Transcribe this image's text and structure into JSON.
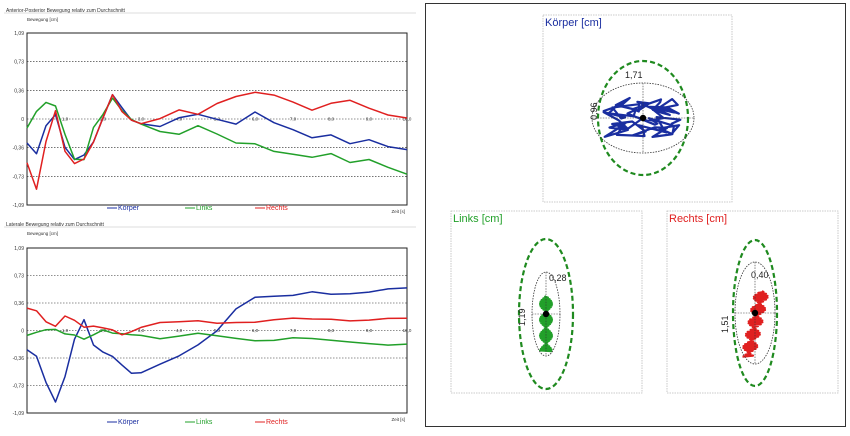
{
  "chart_data": [
    {
      "type": "line",
      "title": "Anterior-Posterior Bewegung relativ zum Durchschnitt",
      "ylabel": "Bewegung [cm]",
      "xlabel": "Zeit [s]",
      "xlim": [
        0,
        10
      ],
      "ylim": [
        -1.09,
        1.09
      ],
      "yticks": [
        "1,09",
        "0,73",
        "0,36",
        "0",
        "-0,36",
        "-0,73",
        "-1,09"
      ],
      "xticks": [
        "1,0",
        "2,0",
        "3,0",
        "4,0",
        "5,0",
        "6,0",
        "7,0",
        "8,0",
        "9,0",
        "10,0"
      ],
      "legend": [
        "Körper",
        "Links",
        "Rechts"
      ],
      "x": [
        0,
        0.25,
        0.5,
        0.75,
        1.0,
        1.25,
        1.5,
        1.75,
        2.0,
        2.25,
        2.5,
        2.75,
        3.0,
        3.5,
        4.0,
        4.5,
        5.0,
        5.5,
        6.0,
        6.5,
        7.0,
        7.5,
        8.0,
        8.5,
        9.0,
        9.5,
        10.0
      ],
      "series": [
        {
          "name": "Körper",
          "color": "#1a2ea0",
          "values": [
            -0.3,
            -0.45,
            -0.1,
            0.05,
            -0.35,
            -0.5,
            -0.45,
            -0.3,
            0.0,
            0.3,
            0.15,
            0.0,
            -0.05,
            -0.1,
            0.0,
            0.05,
            0.0,
            -0.05,
            0.1,
            -0.05,
            -0.15,
            -0.25,
            -0.2,
            -0.3,
            -0.25,
            -0.35,
            -0.4
          ]
        },
        {
          "name": "Links",
          "color": "#22a02a",
          "values": [
            -0.1,
            0.1,
            0.2,
            0.15,
            -0.2,
            -0.5,
            -0.5,
            -0.1,
            0.05,
            0.25,
            0.1,
            0.0,
            -0.05,
            -0.15,
            -0.2,
            -0.1,
            -0.2,
            -0.3,
            -0.3,
            -0.4,
            -0.45,
            -0.5,
            -0.45,
            -0.55,
            -0.5,
            -0.6,
            -0.7
          ]
        },
        {
          "name": "Rechts",
          "color": "#e02020",
          "values": [
            -0.55,
            -0.9,
            -0.3,
            0.1,
            -0.4,
            -0.55,
            -0.5,
            -0.3,
            0.0,
            0.3,
            0.1,
            0.0,
            -0.05,
            0.0,
            0.1,
            0.05,
            0.2,
            0.3,
            0.35,
            0.3,
            0.2,
            0.1,
            0.2,
            0.25,
            0.15,
            0.05,
            0.0
          ]
        }
      ]
    },
    {
      "type": "line",
      "title": "Laterale Bewegung relativ zum Durchschnitt",
      "ylabel": "Bewegung [cm]",
      "xlabel": "Zeit [s]",
      "xlim": [
        0,
        10
      ],
      "ylim": [
        -1.09,
        1.09
      ],
      "yticks": [
        "1,09",
        "0,73",
        "0,36",
        "0",
        "-0,36",
        "-0,73",
        "-1,09"
      ],
      "xticks": [
        "1,0",
        "2,0",
        "3,0",
        "4,0",
        "5,0",
        "6,0",
        "7,0",
        "8,0",
        "9,0",
        "10,0"
      ],
      "legend": [
        "Körper",
        "Links",
        "Rechts"
      ],
      "x": [
        0,
        0.25,
        0.5,
        0.75,
        1.0,
        1.25,
        1.5,
        1.75,
        2.0,
        2.25,
        2.5,
        2.75,
        3.0,
        3.5,
        4.0,
        4.5,
        5.0,
        5.5,
        6.0,
        6.5,
        7.0,
        7.5,
        8.0,
        8.5,
        9.0,
        9.5,
        10.0
      ],
      "series": [
        {
          "name": "Körper",
          "color": "#1a2ea0",
          "values": [
            -0.25,
            -0.35,
            -0.7,
            -0.95,
            -0.6,
            -0.1,
            0.15,
            -0.2,
            -0.3,
            -0.35,
            -0.45,
            -0.55,
            -0.55,
            -0.45,
            -0.35,
            -0.2,
            0.0,
            0.3,
            0.45,
            0.45,
            0.45,
            0.5,
            0.48,
            0.5,
            0.52,
            0.55,
            0.55
          ]
        },
        {
          "name": "Links",
          "color": "#22a02a",
          "values": [
            -0.05,
            -0.02,
            0.0,
            0.0,
            -0.05,
            -0.05,
            -0.1,
            -0.05,
            0.0,
            -0.05,
            -0.05,
            -0.05,
            -0.05,
            -0.1,
            -0.08,
            -0.05,
            -0.08,
            -0.1,
            -0.12,
            -0.12,
            -0.1,
            -0.12,
            -0.14,
            -0.15,
            -0.16,
            -0.18,
            -0.18
          ]
        },
        {
          "name": "Rechts",
          "color": "#e02020",
          "values": [
            0.3,
            0.25,
            0.1,
            0.05,
            0.2,
            0.15,
            0.05,
            0.05,
            0.02,
            0.0,
            -0.05,
            0.0,
            0.05,
            0.1,
            0.1,
            0.12,
            0.1,
            0.12,
            0.12,
            0.14,
            0.15,
            0.14,
            0.15,
            0.14,
            0.15,
            0.16,
            0.15
          ]
        }
      ]
    }
  ],
  "ellipse_plots": [
    {
      "title": "Körper [cm]",
      "color": "#1a2ea0",
      "label_w": "1,71",
      "label_h": "0,96",
      "fill": "#1a2ea0"
    },
    {
      "title": "Links [cm]",
      "color": "#22a02a",
      "label_w": "0,28",
      "label_h": "1,19",
      "fill": "#22a02a"
    },
    {
      "title": "Rechts [cm]",
      "color": "#e02020",
      "label_w": "0,40",
      "label_h": "1,51",
      "fill": "#e02020"
    }
  ]
}
